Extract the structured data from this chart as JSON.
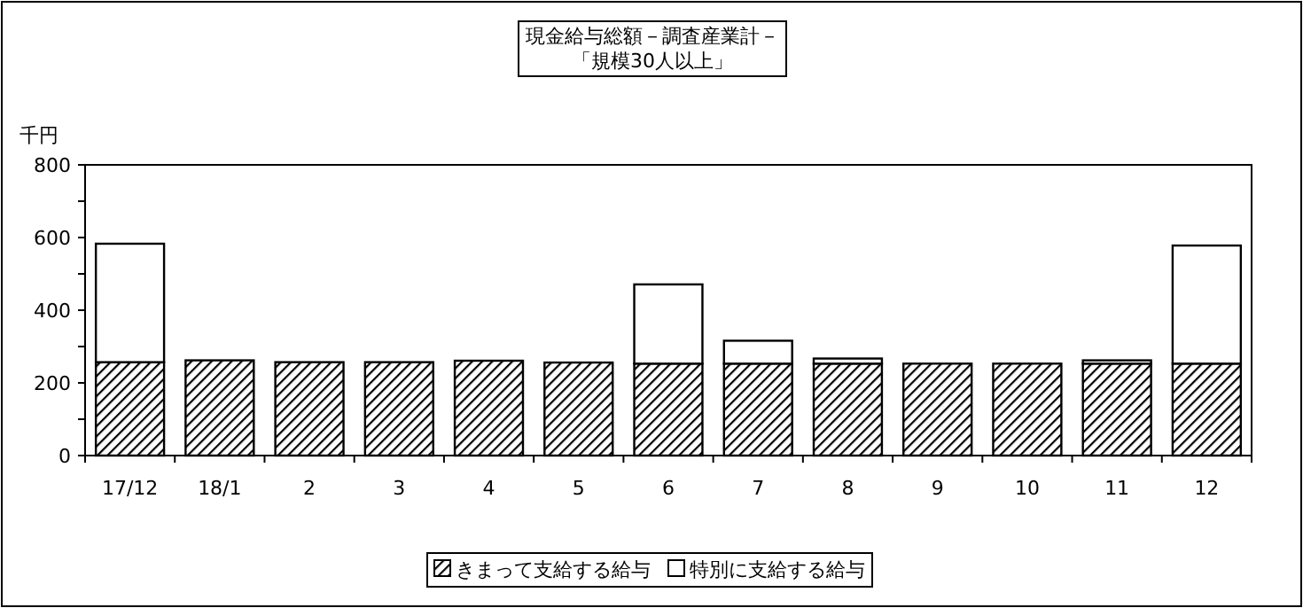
{
  "chart_data": {
    "type": "bar",
    "stacked": true,
    "title": "現金給与総額－調査産業計－",
    "subtitle": "「規模30人以上」",
    "ylabel": "千円",
    "categories": [
      "17/12",
      "18/1",
      "2",
      "3",
      "4",
      "5",
      "6",
      "7",
      "8",
      "9",
      "10",
      "11",
      "12"
    ],
    "series": [
      {
        "name": "きまって支給する給与",
        "color": "#000000",
        "values": [
          257,
          262,
          257,
          257,
          261,
          256,
          253,
          253,
          253,
          253,
          253,
          253,
          253
        ]
      },
      {
        "name": "特別に支給する給与",
        "color": "#ffffff",
        "values": [
          326,
          0,
          0,
          0,
          0,
          0,
          218,
          63,
          14,
          0,
          0,
          9,
          325
        ]
      }
    ],
    "ylim": [
      0,
      800
    ],
    "yticks": [
      0,
      {
        "value": 100,
        "label": null
      },
      200,
      {
        "value": 300,
        "label": null
      },
      400,
      {
        "value": 500,
        "label": null
      },
      600,
      {
        "value": 700,
        "label": null
      },
      800
    ],
    "grid": false,
    "legend": "bottom"
  }
}
